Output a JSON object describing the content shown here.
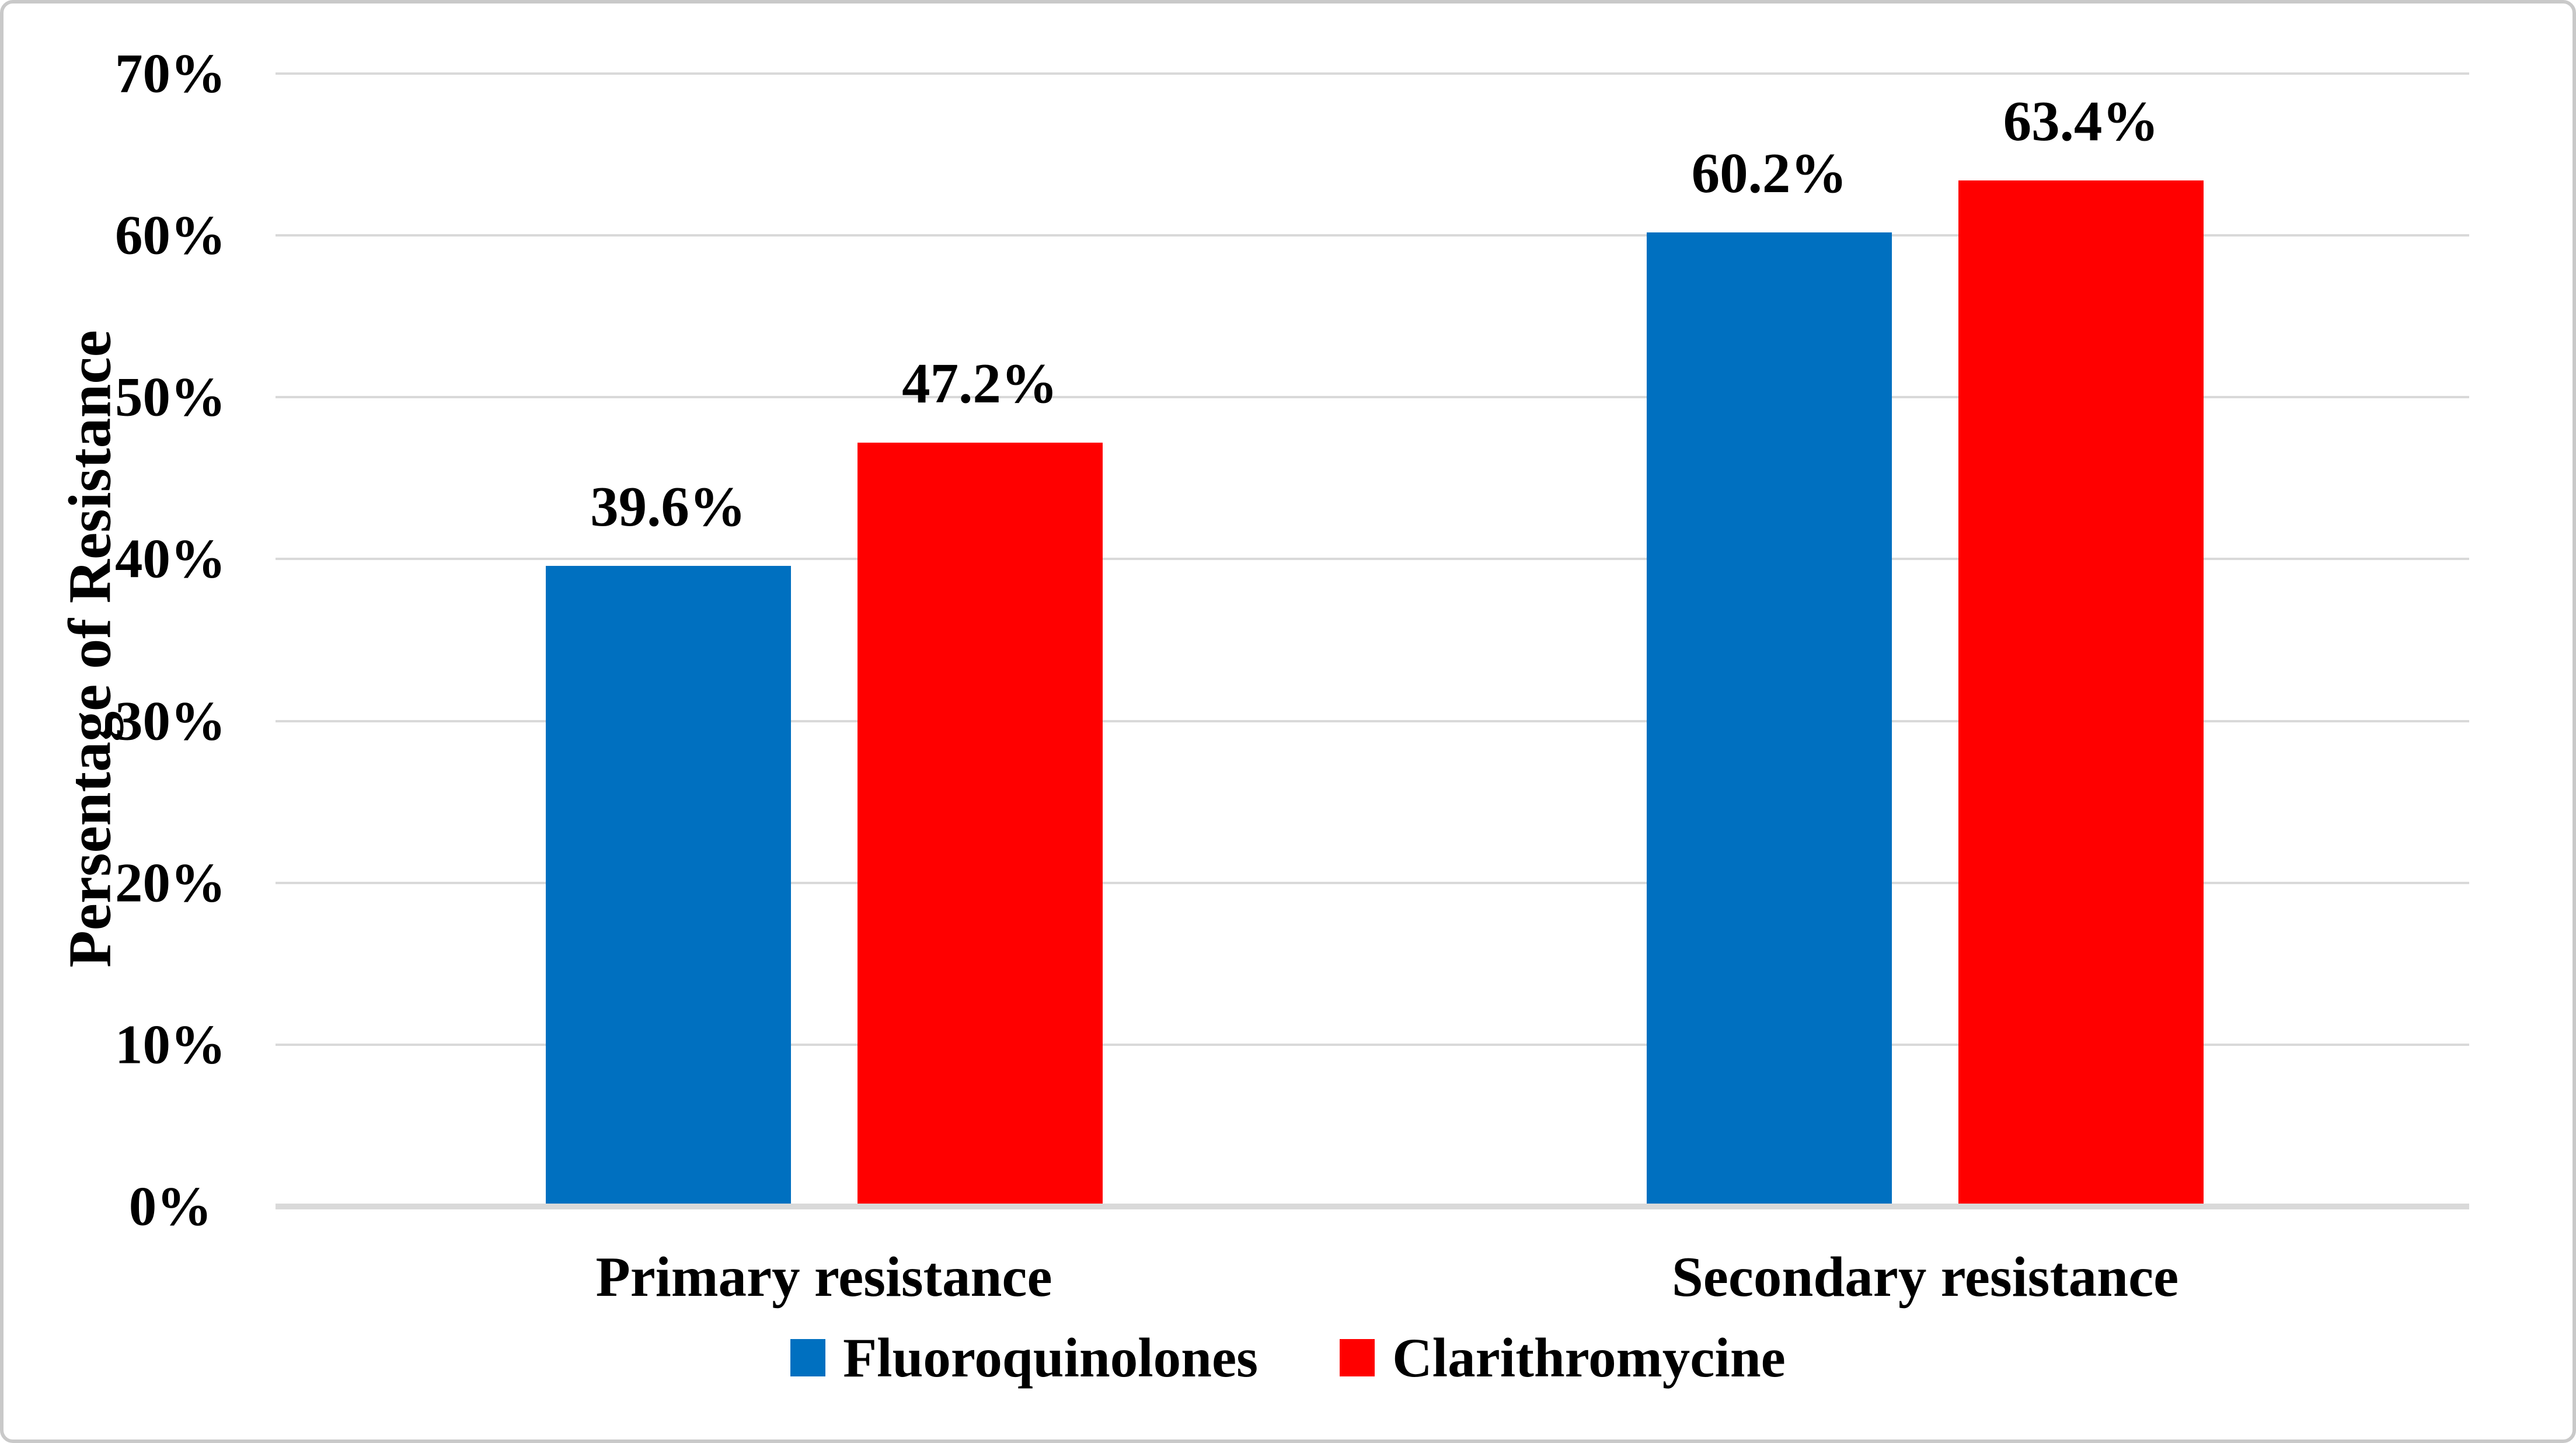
{
  "figure": {
    "background": "#FFFFFF",
    "border_color": "#C9C9C9"
  },
  "chart_data": {
    "type": "bar",
    "title": "",
    "categories": [
      "Primary resistance",
      "Secondary resistance"
    ],
    "series": [
      {
        "name": "Fluoroquinolones",
        "color": "#0070C0",
        "values": [
          39.6,
          60.2
        ]
      },
      {
        "name": "Clarithromycine",
        "color": "#FF0000",
        "values": [
          47.2,
          63.4
        ]
      }
    ],
    "value_labels": [
      [
        "39.6%",
        "47.2%"
      ],
      [
        "60.2%",
        "63.4%"
      ]
    ],
    "ylabel": "Persentage of Resistance",
    "xlabel": "",
    "y_ticks": [
      "70%",
      "60%",
      "50%",
      "40%",
      "30%",
      "20%",
      "10%",
      "0%"
    ],
    "ylim": [
      0,
      70
    ],
    "grid": true,
    "gridline_color": "#D9D9D9",
    "axis_line_color": "#D9D9D9",
    "legend_position": "bottom"
  }
}
